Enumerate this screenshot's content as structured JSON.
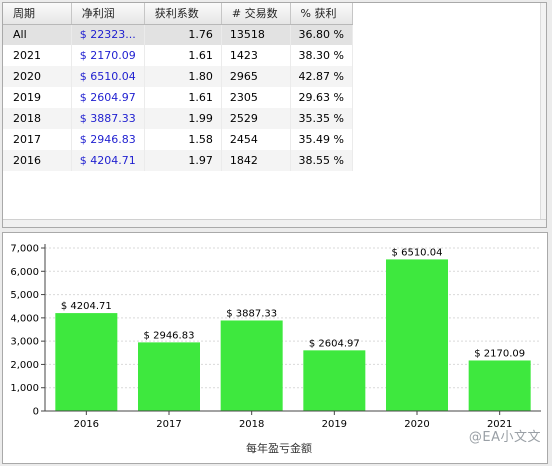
{
  "table": {
    "headers": [
      "周期",
      "净利润",
      "获利系数",
      "# 交易数",
      "% 获利"
    ],
    "rows": [
      {
        "period": "All",
        "profit": "$ 22323...",
        "factor": "1.76",
        "trades": "13518",
        "win": "36.80 %"
      },
      {
        "period": "2021",
        "profit": "$ 2170.09",
        "factor": "1.61",
        "trades": "1423",
        "win": "38.30 %"
      },
      {
        "period": "2020",
        "profit": "$ 6510.04",
        "factor": "1.80",
        "trades": "2965",
        "win": "42.87 %"
      },
      {
        "period": "2019",
        "profit": "$ 2604.97",
        "factor": "1.61",
        "trades": "2305",
        "win": "29.63 %"
      },
      {
        "period": "2018",
        "profit": "$ 3887.33",
        "factor": "1.99",
        "trades": "2529",
        "win": "35.35 %"
      },
      {
        "period": "2017",
        "profit": "$ 2946.83",
        "factor": "1.58",
        "trades": "2454",
        "win": "35.49 %"
      },
      {
        "period": "2016",
        "profit": "$ 4204.71",
        "factor": "1.97",
        "trades": "1842",
        "win": "38.55 %"
      }
    ]
  },
  "chart_data": {
    "type": "bar",
    "categories": [
      "2016",
      "2017",
      "2018",
      "2019",
      "2020",
      "2021"
    ],
    "values": [
      4204.71,
      2946.83,
      3887.33,
      2604.97,
      6510.04,
      2170.09
    ],
    "labels": [
      "$ 4204.71",
      "$ 2946.83",
      "$ 3887.33",
      "$ 2604.97",
      "$ 6510.04",
      "$ 2170.09"
    ],
    "yticks": [
      0,
      1000,
      2000,
      3000,
      4000,
      5000,
      6000,
      7000
    ],
    "ytick_labels": [
      "0",
      "1,000",
      "2,000",
      "3,000",
      "4,000",
      "5,000",
      "6,000",
      "7,000"
    ],
    "ylim": [
      0,
      7000
    ],
    "xlabel": "每年盈亏金额",
    "bar_color": "#3ee83e",
    "grid": true
  },
  "watermark": "@EA小文文"
}
